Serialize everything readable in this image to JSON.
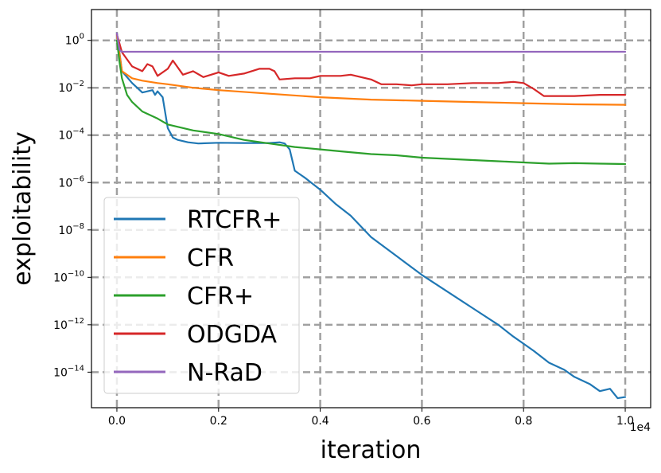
{
  "chart_data": {
    "type": "line",
    "title": "",
    "xlabel": "iteration",
    "ylabel": "exploitability",
    "x_offset_label": "1e4",
    "xlim": [
      -0.05,
      1.05
    ],
    "ylim_log10": [
      -15.5,
      1.3
    ],
    "yscale": "log",
    "grid": true,
    "legend_position": "lower-left",
    "x_ticks": [
      0.0,
      0.2,
      0.4,
      0.6,
      0.8,
      1.0
    ],
    "x_tick_labels": [
      "0.0",
      "0.2",
      "0.4",
      "0.6",
      "0.8",
      "1.0"
    ],
    "y_ticks_log10": [
      0,
      -2,
      -4,
      -6,
      -8,
      -10,
      -12,
      -14
    ],
    "y_tick_labels": [
      {
        "base": "10",
        "exp": "0"
      },
      {
        "base": "10",
        "exp": "−2"
      },
      {
        "base": "10",
        "exp": "−4"
      },
      {
        "base": "10",
        "exp": "−6"
      },
      {
        "base": "10",
        "exp": "−8"
      },
      {
        "base": "10",
        "exp": "−10"
      },
      {
        "base": "10",
        "exp": "−12"
      },
      {
        "base": "10",
        "exp": "−14"
      }
    ],
    "series": [
      {
        "name": "RTCFR+",
        "color": "#1f77b4",
        "x": [
          0.0,
          0.01,
          0.03,
          0.05,
          0.06,
          0.07,
          0.075,
          0.08,
          0.09,
          0.1,
          0.11,
          0.12,
          0.14,
          0.16,
          0.2,
          0.25,
          0.3,
          0.32,
          0.33,
          0.34,
          0.35,
          0.37,
          0.4,
          0.43,
          0.46,
          0.5,
          0.55,
          0.6,
          0.65,
          0.7,
          0.75,
          0.78,
          0.8,
          0.82,
          0.85,
          0.88,
          0.9,
          0.93,
          0.95,
          0.97,
          0.985,
          1.0
        ],
        "log10": [
          0.3,
          -1.3,
          -1.8,
          -2.2,
          -2.15,
          -2.1,
          -2.3,
          -2.15,
          -2.4,
          -3.7,
          -4.1,
          -4.2,
          -4.3,
          -4.35,
          -4.32,
          -4.33,
          -4.33,
          -4.3,
          -4.35,
          -4.6,
          -5.5,
          -5.8,
          -6.3,
          -6.9,
          -7.4,
          -8.3,
          -9.1,
          -9.9,
          -10.6,
          -11.3,
          -12.0,
          -12.5,
          -12.8,
          -13.1,
          -13.6,
          -13.9,
          -14.2,
          -14.5,
          -14.8,
          -14.7,
          -15.1,
          -15.05
        ]
      },
      {
        "name": "CFR",
        "color": "#ff7f0e",
        "x": [
          0.0,
          0.01,
          0.03,
          0.05,
          0.08,
          0.1,
          0.15,
          0.2,
          0.3,
          0.4,
          0.5,
          0.6,
          0.7,
          0.8,
          0.9,
          1.0
        ],
        "log10": [
          0.2,
          -1.3,
          -1.6,
          -1.7,
          -1.8,
          -1.85,
          -2.0,
          -2.1,
          -2.25,
          -2.4,
          -2.5,
          -2.55,
          -2.6,
          -2.65,
          -2.7,
          -2.72
        ]
      },
      {
        "name": "CFR+",
        "color": "#2ca02c",
        "x": [
          0.0,
          0.005,
          0.01,
          0.02,
          0.03,
          0.05,
          0.08,
          0.1,
          0.12,
          0.15,
          0.2,
          0.25,
          0.3,
          0.35,
          0.4,
          0.45,
          0.5,
          0.55,
          0.6,
          0.65,
          0.7,
          0.75,
          0.8,
          0.85,
          0.9,
          0.95,
          1.0
        ],
        "log10": [
          0.0,
          -0.9,
          -1.6,
          -2.3,
          -2.6,
          -3.0,
          -3.3,
          -3.55,
          -3.65,
          -3.8,
          -3.95,
          -4.2,
          -4.35,
          -4.5,
          -4.6,
          -4.7,
          -4.8,
          -4.85,
          -4.95,
          -5.0,
          -5.05,
          -5.1,
          -5.15,
          -5.2,
          -5.18,
          -5.2,
          -5.22
        ]
      },
      {
        "name": "ODGDA",
        "color": "#d62728",
        "x": [
          0.0,
          0.01,
          0.02,
          0.03,
          0.05,
          0.06,
          0.07,
          0.08,
          0.1,
          0.11,
          0.13,
          0.15,
          0.17,
          0.2,
          0.22,
          0.25,
          0.28,
          0.3,
          0.31,
          0.32,
          0.35,
          0.38,
          0.4,
          0.44,
          0.46,
          0.48,
          0.5,
          0.52,
          0.55,
          0.58,
          0.6,
          0.65,
          0.7,
          0.75,
          0.78,
          0.8,
          0.82,
          0.84,
          0.9,
          0.95,
          1.0
        ],
        "log10": [
          0.25,
          -0.5,
          -0.8,
          -1.1,
          -1.3,
          -1.0,
          -1.1,
          -1.5,
          -1.2,
          -0.85,
          -1.45,
          -1.3,
          -1.55,
          -1.35,
          -1.5,
          -1.4,
          -1.2,
          -1.2,
          -1.3,
          -1.65,
          -1.6,
          -1.6,
          -1.5,
          -1.5,
          -1.45,
          -1.55,
          -1.65,
          -1.85,
          -1.85,
          -1.9,
          -1.85,
          -1.85,
          -1.8,
          -1.8,
          -1.75,
          -1.8,
          -2.05,
          -2.35,
          -2.35,
          -2.3,
          -2.3
        ]
      },
      {
        "name": "N-RaD",
        "color": "#9467bd",
        "x": [
          0.0,
          0.005,
          0.01,
          0.03,
          0.1,
          0.2,
          0.4,
          0.6,
          0.8,
          1.0
        ],
        "log10": [
          0.3,
          -0.4,
          -0.48,
          -0.48,
          -0.48,
          -0.48,
          -0.48,
          -0.48,
          -0.48,
          -0.48
        ]
      }
    ]
  }
}
